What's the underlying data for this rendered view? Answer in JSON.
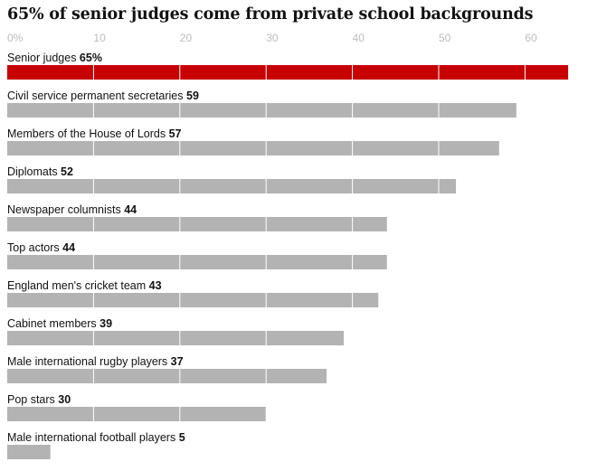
{
  "title": "65% of senior judges come from private school backgrounds",
  "chart_data": {
    "type": "bar",
    "orientation": "horizontal",
    "title": "65% of senior judges come from private school backgrounds",
    "xlabel": "",
    "ylabel": "",
    "xlim": [
      0,
      65
    ],
    "x_ticks": [
      0,
      10,
      20,
      30,
      40,
      50,
      60
    ],
    "x_tick_labels": [
      "0%",
      "10",
      "20",
      "30",
      "40",
      "50",
      "60"
    ],
    "grid": true,
    "categories": [
      "Senior judges",
      "Civil service permanent secretaries",
      "Members of the House of Lords",
      "Diplomats",
      "Newspaper columnists",
      "Top actors",
      "England men's cricket team",
      "Cabinet members",
      "Male international rugby players",
      "Pop stars",
      "Male international football players"
    ],
    "values": [
      65,
      59,
      57,
      52,
      44,
      44,
      43,
      39,
      37,
      30,
      5
    ],
    "value_labels": [
      "65%",
      "59",
      "57",
      "52",
      "44",
      "44",
      "43",
      "39",
      "37",
      "30",
      "5"
    ],
    "colors": [
      "#c70000",
      "#b3b3b4",
      "#b3b3b4",
      "#b3b3b4",
      "#b3b3b4",
      "#b3b3b4",
      "#b3b3b4",
      "#b3b3b4",
      "#b3b3b4",
      "#b3b3b4",
      "#b3b3b4"
    ],
    "highlight_color": "#c70000",
    "bar_color": "#b3b3b4",
    "gridline_color": "#ffffff"
  }
}
